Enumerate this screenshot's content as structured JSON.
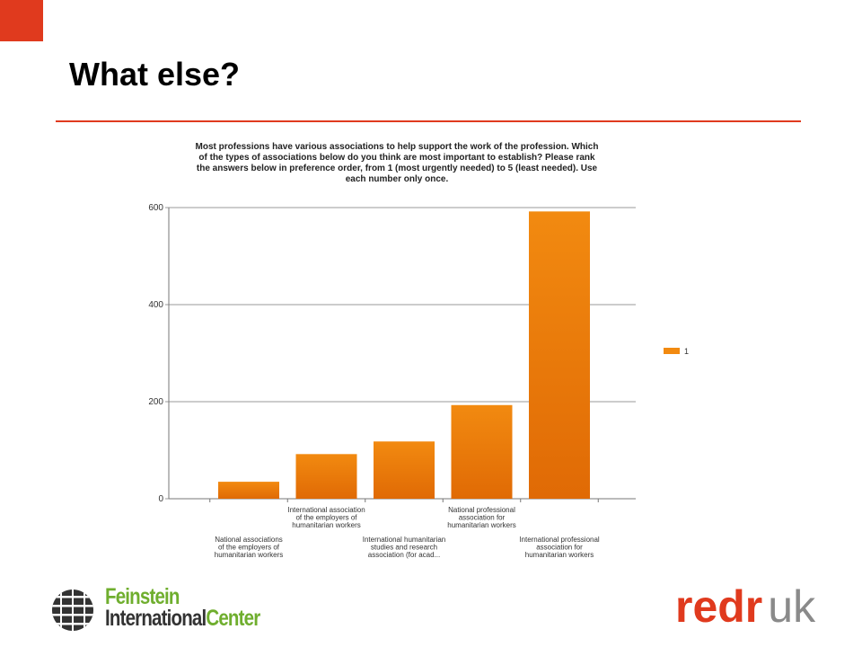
{
  "slide": {
    "title": "What else?",
    "accent_color": "#e03a1e"
  },
  "chart_data": {
    "type": "bar",
    "title_lines": [
      "Most professions have various associations to help support the work of the profession.  Which",
      "of the types of associations below do you think are most important to establish?  Please rank",
      "the answers below in preference order, from 1 (most urgently needed) to 5 (least needed).  Use",
      "each number  only  once."
    ],
    "categories": [
      [
        "National associations",
        "of the employers of",
        "humanitarian workers"
      ],
      [
        "International association",
        "of the employers of",
        "humanitarian workers"
      ],
      [
        "International humanitarian",
        "studies and research",
        "association (for acad..."
      ],
      [
        "National professional",
        "association for",
        "humanitarian workers"
      ],
      [
        "International professional",
        "association for",
        "humanitarian workers"
      ]
    ],
    "series": [
      {
        "name": "1",
        "values": [
          35,
          92,
          118,
          193,
          592
        ]
      }
    ],
    "ylim": [
      0,
      600
    ],
    "yticks": [
      0,
      200,
      400,
      600
    ],
    "grid": true,
    "legend": "right",
    "bar_color": "#f28a10",
    "bar_color_dark": "#e06a05"
  },
  "logos": {
    "feinstein_line1": "Feinstein",
    "feinstein_line2_a": "International",
    "feinstein_line2_b": "Center",
    "feinstein_green": "#6fae2e",
    "feinstein_dark": "#333333",
    "redr_a": "redr",
    "redr_b": "uk",
    "redr_red": "#e03a1e",
    "redr_grey": "#8a8a8a"
  }
}
